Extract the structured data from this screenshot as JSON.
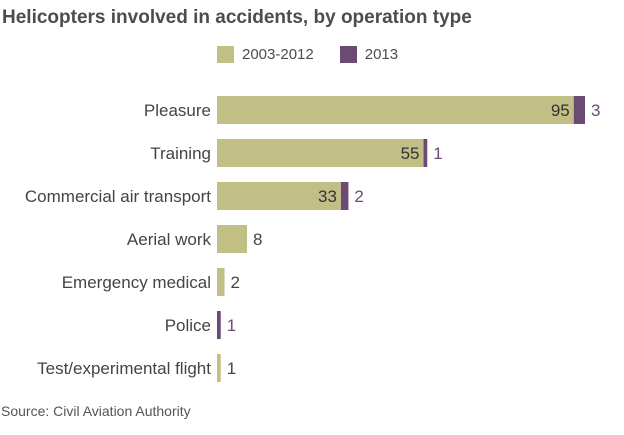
{
  "chart_data": {
    "type": "bar",
    "orientation": "horizontal",
    "stacked": true,
    "title": "Helicopters involved in accidents, by operation type",
    "categories": [
      "Pleasure",
      "Training",
      "Commercial air transport",
      "Aerial work",
      "Emergency medical",
      "Police",
      "Test/experimental flight"
    ],
    "series": [
      {
        "name": "2003-2012",
        "color": "#c2bf86",
        "values": [
          95,
          55,
          33,
          8,
          2,
          0,
          1
        ]
      },
      {
        "name": "2013",
        "color": "#6b4b72",
        "values": [
          3,
          1,
          2,
          0,
          0,
          1,
          0
        ]
      }
    ],
    "xlim": [
      0,
      98
    ],
    "grid": false,
    "legend_position": "top",
    "source": "Source: Civil Aviation Authority"
  }
}
